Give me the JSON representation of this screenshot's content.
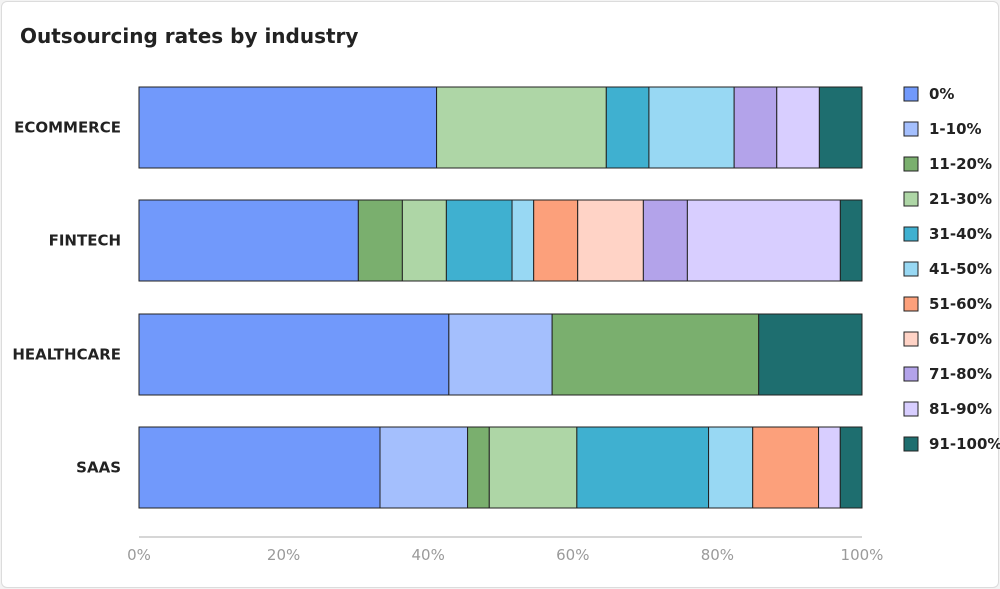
{
  "chart_data": {
    "type": "bar",
    "orientation": "horizontal",
    "stacked": "percent",
    "title": "Outsourcing rates by industry",
    "categories": [
      "ECOMMERCE",
      "FINTECH",
      "HEALTHCARE",
      "SAAS"
    ],
    "series": [
      {
        "name": "0%",
        "color": "#7199fb",
        "values": [
          41.2,
          30.4,
          42.9,
          33.3
        ]
      },
      {
        "name": "1-10%",
        "color": "#a4bffd",
        "values": [
          0,
          0,
          14.3,
          12.1
        ]
      },
      {
        "name": "11-20%",
        "color": "#7aaf6e",
        "values": [
          0,
          6.1,
          28.6,
          3.0
        ]
      },
      {
        "name": "21-30%",
        "color": "#aed6a6",
        "values": [
          23.5,
          6.1,
          0,
          12.1
        ]
      },
      {
        "name": "31-40%",
        "color": "#3fb0d0",
        "values": [
          5.9,
          9.1,
          0,
          18.2
        ]
      },
      {
        "name": "41-50%",
        "color": "#98d8f3",
        "values": [
          11.8,
          3.0,
          0,
          6.1
        ]
      },
      {
        "name": "51-60%",
        "color": "#fca07b",
        "values": [
          0,
          6.1,
          0,
          9.1
        ]
      },
      {
        "name": "61-70%",
        "color": "#ffd3c6",
        "values": [
          0,
          9.1,
          0,
          0
        ]
      },
      {
        "name": "71-80%",
        "color": "#b3a3ea",
        "values": [
          5.9,
          6.1,
          0,
          0
        ]
      },
      {
        "name": "81-90%",
        "color": "#d8ceff",
        "values": [
          5.9,
          21.2,
          0,
          3.0
        ]
      },
      {
        "name": "91-100%",
        "color": "#1e6e6f",
        "values": [
          5.9,
          3.0,
          14.3,
          3.0
        ]
      }
    ],
    "xlim": [
      0,
      100
    ],
    "x_ticks": [
      "0%",
      "20%",
      "40%",
      "60%",
      "80%",
      "100%"
    ],
    "xlabel": "",
    "ylabel": "",
    "legend_position": "right",
    "grid": false
  }
}
